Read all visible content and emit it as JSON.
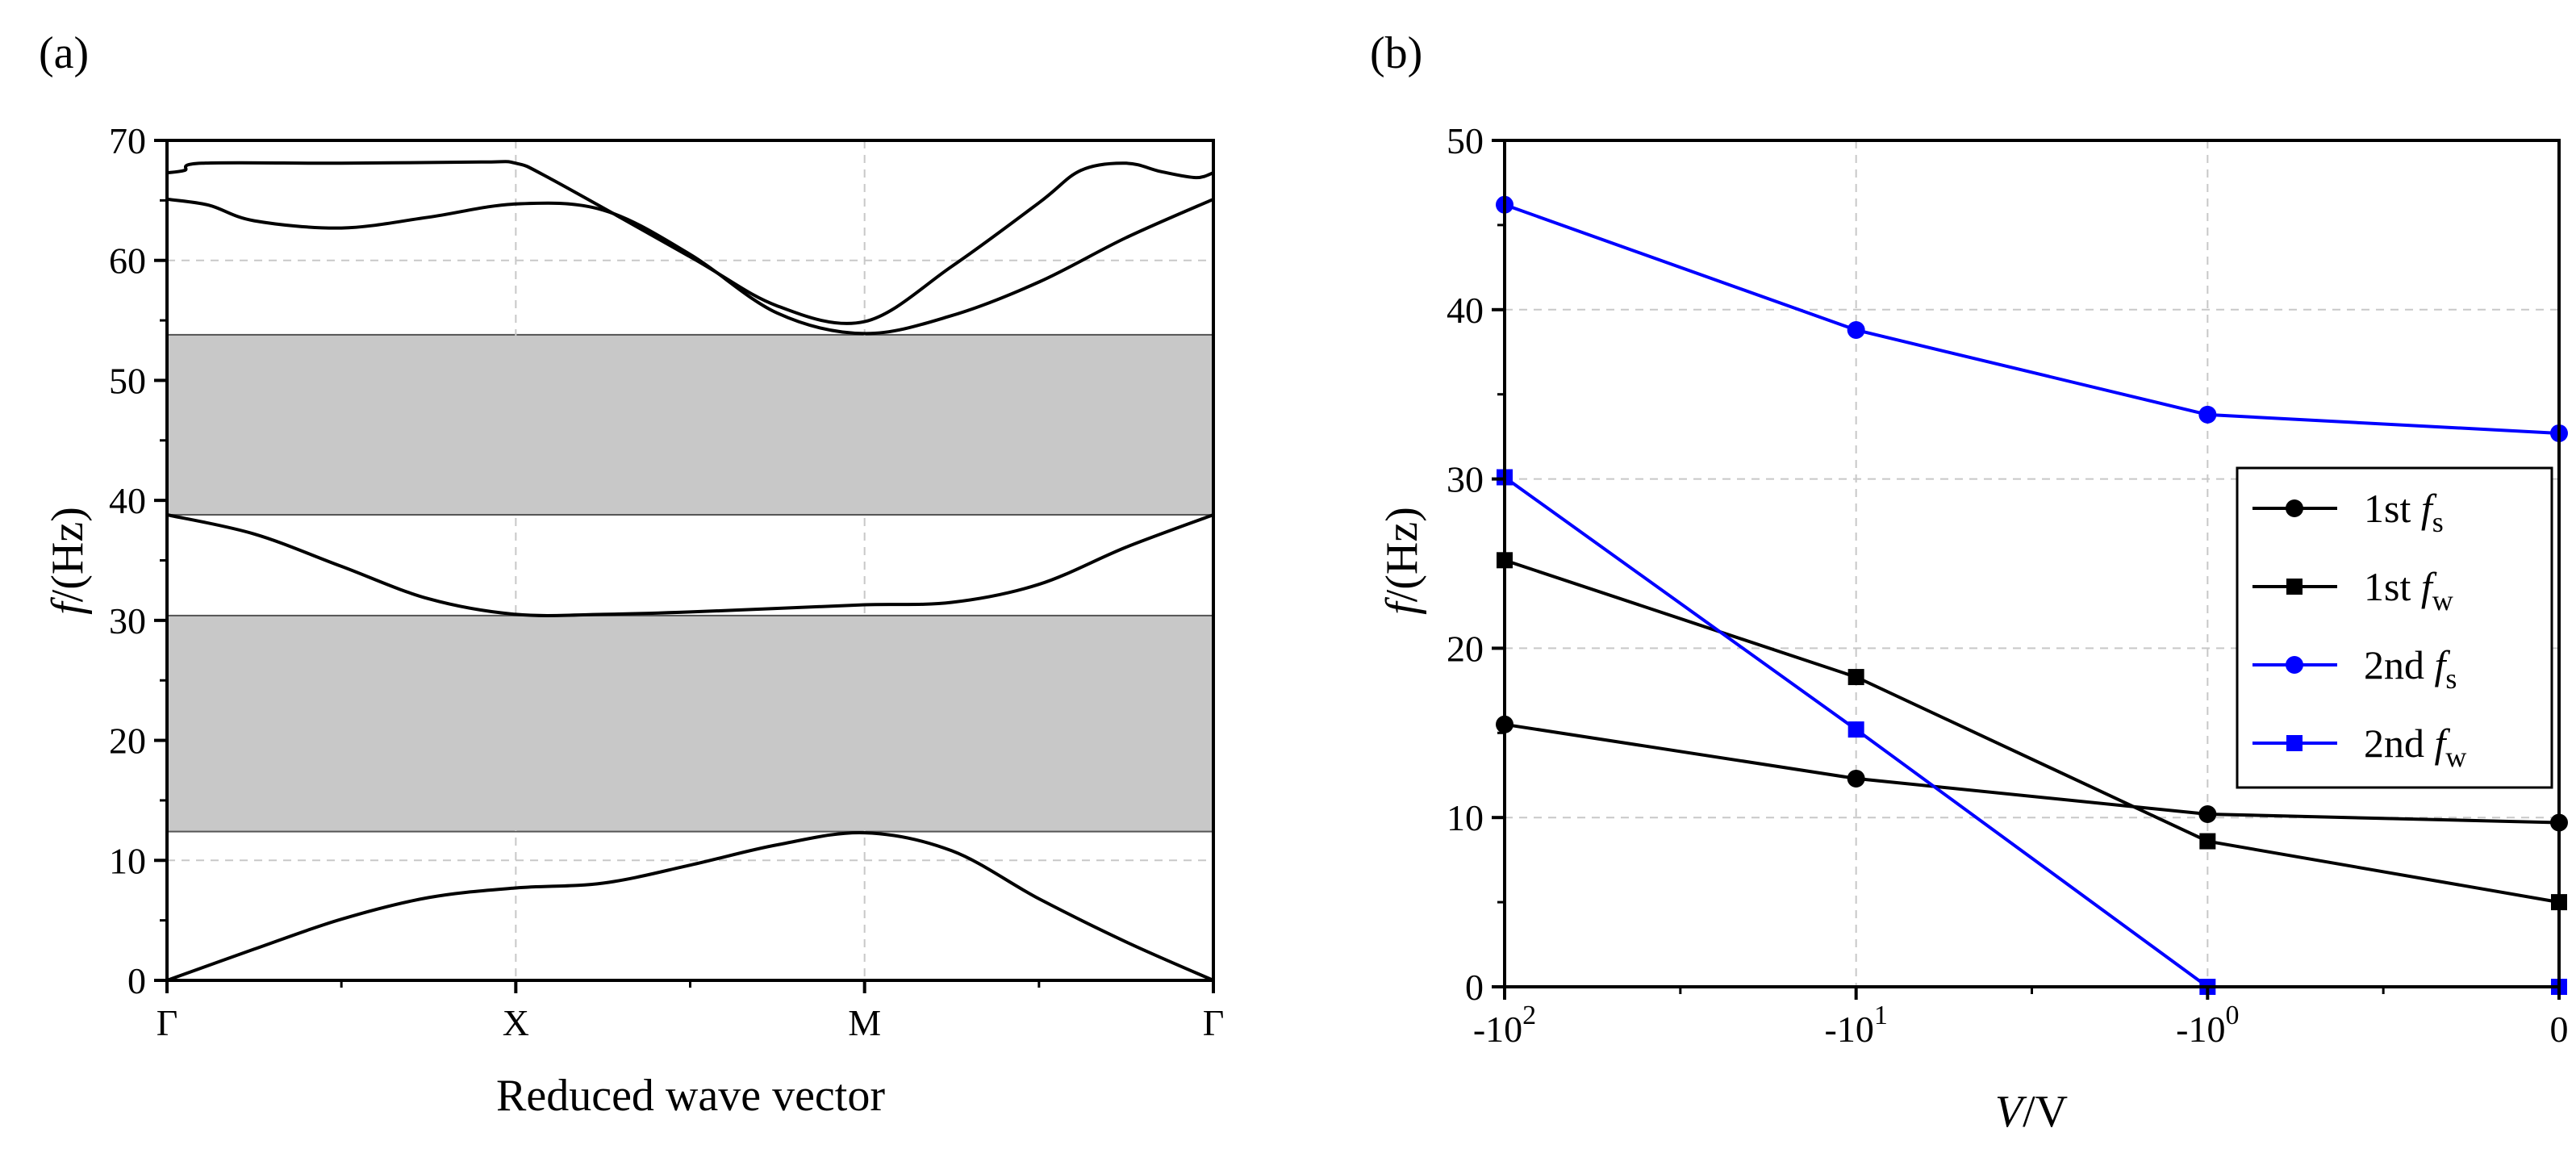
{
  "chart_data": [
    {
      "panel": "(a)",
      "type": "line",
      "title": "",
      "xlabel": "Reduced wave vector",
      "ylabel": "f/(Hz)",
      "ylim": [
        0,
        70
      ],
      "yticks": [
        0,
        10,
        20,
        30,
        40,
        50,
        60,
        70
      ],
      "xlim": [
        0,
        3
      ],
      "xtick_positions": [
        0,
        1,
        2,
        3
      ],
      "xtick_labels": [
        "Γ",
        "X",
        "M",
        "Γ"
      ],
      "grid": true,
      "band_gaps": [
        {
          "low": 12.4,
          "high": 30.4
        },
        {
          "low": 38.8,
          "high": 53.8
        }
      ],
      "series": [
        {
          "name": "band 1",
          "points": [
            [
              0,
              0
            ],
            [
              0.25,
              2.6
            ],
            [
              0.5,
              5.1
            ],
            [
              0.75,
              6.9
            ],
            [
              1,
              7.7
            ],
            [
              1.25,
              8.1
            ],
            [
              1.5,
              9.6
            ],
            [
              1.75,
              11.3
            ],
            [
              2,
              12.3
            ],
            [
              2.25,
              10.8
            ],
            [
              2.5,
              6.8
            ],
            [
              2.75,
              3.2
            ],
            [
              3,
              0
            ]
          ]
        },
        {
          "name": "band 2",
          "points": [
            [
              0,
              38.8
            ],
            [
              0.25,
              37.2
            ],
            [
              0.5,
              34.5
            ],
            [
              0.75,
              31.8
            ],
            [
              1,
              30.5
            ],
            [
              1.25,
              30.5
            ],
            [
              1.5,
              30.7
            ],
            [
              1.75,
              31
            ],
            [
              2,
              31.3
            ],
            [
              2.25,
              31.5
            ],
            [
              2.5,
              33
            ],
            [
              2.75,
              36.1
            ],
            [
              3,
              38.8
            ]
          ]
        },
        {
          "name": "band 3",
          "points": [
            [
              0,
              65.1
            ],
            [
              0.12,
              64.6
            ],
            [
              0.25,
              63.3
            ],
            [
              0.5,
              62.7
            ],
            [
              0.75,
              63.6
            ],
            [
              1,
              64.7
            ],
            [
              1.25,
              64.2
            ],
            [
              1.5,
              60.5
            ],
            [
              1.75,
              55.6
            ],
            [
              2,
              53.9
            ],
            [
              2.25,
              55.4
            ],
            [
              2.5,
              58.2
            ],
            [
              2.75,
              61.9
            ],
            [
              3,
              65.1
            ]
          ]
        },
        {
          "name": "band 4",
          "points": [
            [
              0,
              67.3
            ],
            [
              0.05,
              67.5
            ],
            [
              0.1,
              68.1
            ],
            [
              0.5,
              68.1
            ],
            [
              0.9,
              68.2
            ],
            [
              1,
              68.1
            ],
            [
              1.1,
              66.8
            ],
            [
              1.5,
              60.3
            ],
            [
              1.75,
              56.2
            ],
            [
              2,
              54.9
            ],
            [
              2.25,
              59.5
            ],
            [
              2.5,
              64.8
            ],
            [
              2.62,
              67.5
            ],
            [
              2.75,
              68.1
            ],
            [
              2.85,
              67.4
            ],
            [
              2.95,
              66.9
            ],
            [
              3,
              67.3
            ]
          ]
        }
      ]
    },
    {
      "panel": "(b)",
      "type": "line",
      "title": "",
      "xlabel": "V/V",
      "ylabel": "f/(Hz)",
      "ylim": [
        0,
        50
      ],
      "yticks": [
        0,
        10,
        20,
        30,
        40,
        50
      ],
      "xtick_labels": [
        "-10^2",
        "-10^1",
        "-10^0",
        "0"
      ],
      "categories": [
        "-10^2",
        "-10^1",
        "-10^0",
        "0"
      ],
      "grid": true,
      "legend_position": "right",
      "series": [
        {
          "name": "1st f_s",
          "label_main": "1st",
          "label_var": "f",
          "label_sub": "s",
          "color": "#000000",
          "marker": "circle",
          "values": [
            15.5,
            12.3,
            10.2,
            9.7
          ]
        },
        {
          "name": "1st f_w",
          "label_main": "1st",
          "label_var": "f",
          "label_sub": "w",
          "color": "#000000",
          "marker": "square",
          "values": [
            25.2,
            18.3,
            8.6,
            5.0
          ]
        },
        {
          "name": "2nd f_s",
          "label_main": "2nd",
          "label_var": "f",
          "label_sub": "s",
          "color": "#0000ff",
          "marker": "circle",
          "values": [
            46.2,
            38.8,
            33.8,
            32.7
          ]
        },
        {
          "name": "2nd f_w",
          "label_main": "2nd",
          "label_var": "f",
          "label_sub": "w",
          "color": "#0000ff",
          "marker": "square",
          "values": [
            30.1,
            15.2,
            0,
            0
          ]
        }
      ]
    }
  ],
  "colors": {
    "band_gap_fill": "#c8c8c8",
    "axis": "#000000",
    "blue": "#0000ff"
  }
}
